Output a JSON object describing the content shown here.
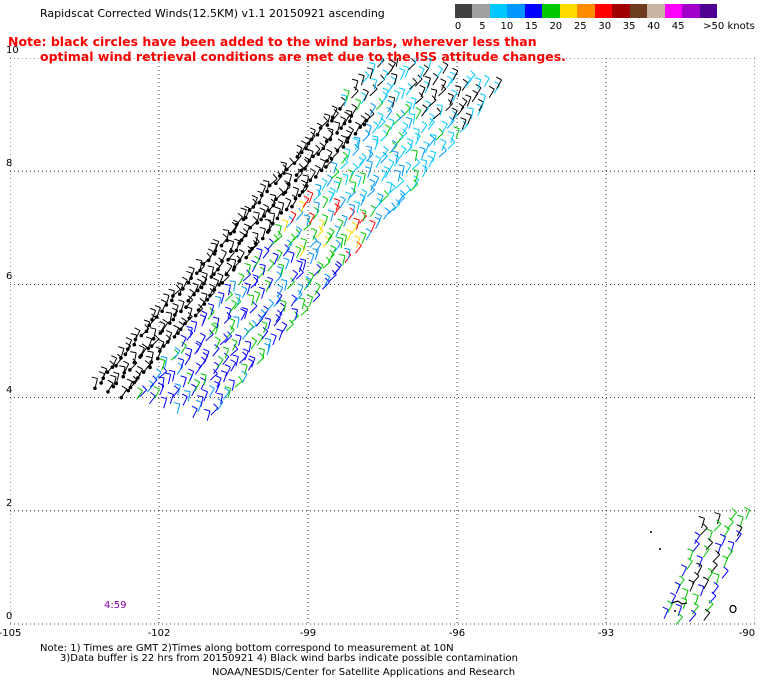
{
  "header": {
    "title": "Rapidscat Corrected Winds(12.5KM) v1.1 20150921 ascending"
  },
  "notice": {
    "line1": "Note: black circles have been added to the wind barbs, wherever less than",
    "line2": "optimal wind retrieval conditions are met due to the ISS attitude changes."
  },
  "legend": {
    "colors": [
      "#404040",
      "#a0a0a0",
      "#00c8ff",
      "#0096ff",
      "#0000ff",
      "#00c800",
      "#ffdc00",
      "#ff8c00",
      "#ff0000",
      "#a00000",
      "#6e3c1e",
      "#c8b4a0",
      "#ff00ff",
      "#a000c8",
      "#500090"
    ],
    "labels": [
      {
        "text": "0",
        "value": 0
      },
      {
        "text": "5",
        "value": 5
      },
      {
        "text": "10",
        "value": 10
      },
      {
        "text": "15",
        "value": 15
      },
      {
        "text": "20",
        "value": 20
      },
      {
        "text": "25",
        "value": 25
      },
      {
        "text": "30",
        "value": 30
      },
      {
        "text": "35",
        "value": 35
      },
      {
        "text": "40",
        "value": 40
      },
      {
        "text": "45",
        "value": 45
      },
      {
        "text": ">50 knots",
        "value": 50
      }
    ]
  },
  "axes": {
    "lon_ticks": [
      {
        "text": "-105",
        "value": -105
      },
      {
        "text": "-102",
        "value": -102
      },
      {
        "text": "-99",
        "value": -99
      },
      {
        "text": "-96",
        "value": -96
      },
      {
        "text": "-93",
        "value": -93
      },
      {
        "text": "-90",
        "value": -90
      }
    ],
    "lat_ticks": [
      {
        "text": "0",
        "value": 0
      },
      {
        "text": "2",
        "value": 2
      },
      {
        "text": "4",
        "value": 4
      },
      {
        "text": "6",
        "value": 6
      },
      {
        "text": "8",
        "value": 8
      },
      {
        "text": "10",
        "value": 10
      }
    ],
    "lon_range": [
      -105,
      -90
    ],
    "lat_range": [
      0,
      10
    ]
  },
  "swath_time": "4:59",
  "footer": {
    "line1": "Note: 1) Times are GMT 2)Times along bottom correspond to measurement at 10N",
    "line2": "3)Data buffer is 22 hrs from 20150921 4) Black wind barbs indicate possible contamination",
    "line3": "NOAA/NESDIS/Center for Satellite Applications and Research"
  }
}
